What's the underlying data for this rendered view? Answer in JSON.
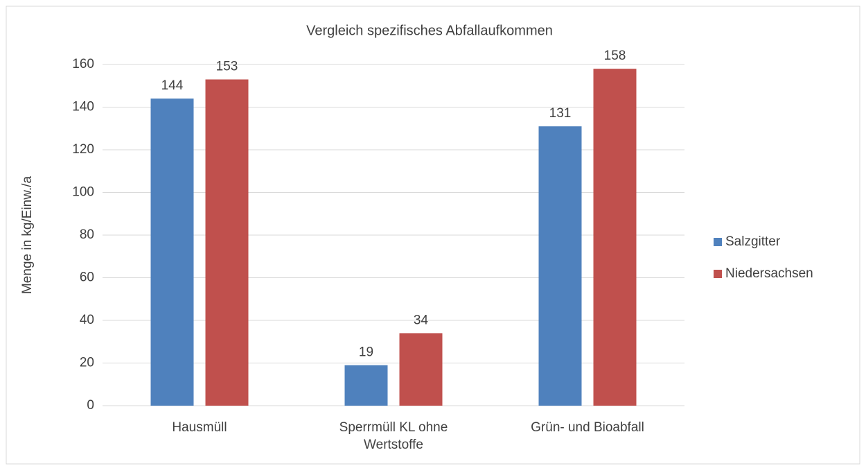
{
  "chart_data": {
    "type": "bar",
    "title": "Vergleich spezifisches Abfallaufkommen",
    "y_label": "Menge in kg/Einw./a",
    "categories": [
      "Hausmüll",
      "Sperrmüll KL ohne Wertstoffe",
      "Grün- und Bioabfall"
    ],
    "series": [
      {
        "name": "Salzgitter",
        "color": "#4f81bd",
        "values": [
          144,
          19,
          131
        ]
      },
      {
        "name": "Niedersachsen",
        "color": "#c0504d",
        "values": [
          153,
          34,
          158
        ]
      }
    ],
    "ylim": [
      0,
      160
    ],
    "yticks": [
      0,
      20,
      40,
      60,
      80,
      100,
      120,
      140,
      160
    ],
    "grid": true,
    "legend": "right"
  }
}
